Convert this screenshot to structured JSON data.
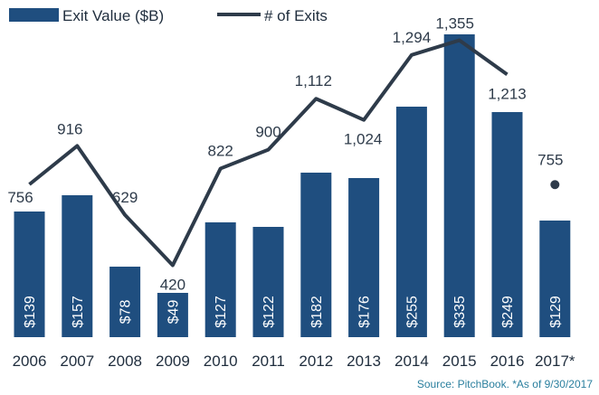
{
  "chart_data": {
    "type": "bar",
    "categories": [
      "2006",
      "2007",
      "2008",
      "2009",
      "2010",
      "2011",
      "2012",
      "2013",
      "2014",
      "2015",
      "2016",
      "2017*"
    ],
    "series": [
      {
        "name": "Exit Value ($B)",
        "type": "bar",
        "values": [
          139,
          157,
          78,
          49,
          127,
          122,
          182,
          176,
          255,
          335,
          249,
          129
        ],
        "labels": [
          "$139",
          "$157",
          "$78",
          "$49",
          "$127",
          "$122",
          "$182",
          "$176",
          "$255",
          "$335",
          "$249",
          "$129"
        ],
        "color": "#1f4e7f"
      },
      {
        "name": "# of Exits",
        "type": "line",
        "values": [
          756,
          916,
          629,
          420,
          822,
          900,
          1112,
          1024,
          1294,
          1355,
          1213,
          755
        ],
        "labels": [
          "756",
          "916",
          "629",
          "420",
          "822",
          "900",
          "1,112",
          "1,024",
          "1,294",
          "1,355",
          "1,213",
          "755"
        ],
        "color": "#2e3b4a",
        "note": "2017* shown as a separate point"
      }
    ],
    "legend": {
      "position": "top-left",
      "items": [
        "Exit Value ($B)",
        "# of Exits"
      ]
    },
    "source": "Source: PitchBook. *As of 9/30/2017",
    "grid": false
  }
}
